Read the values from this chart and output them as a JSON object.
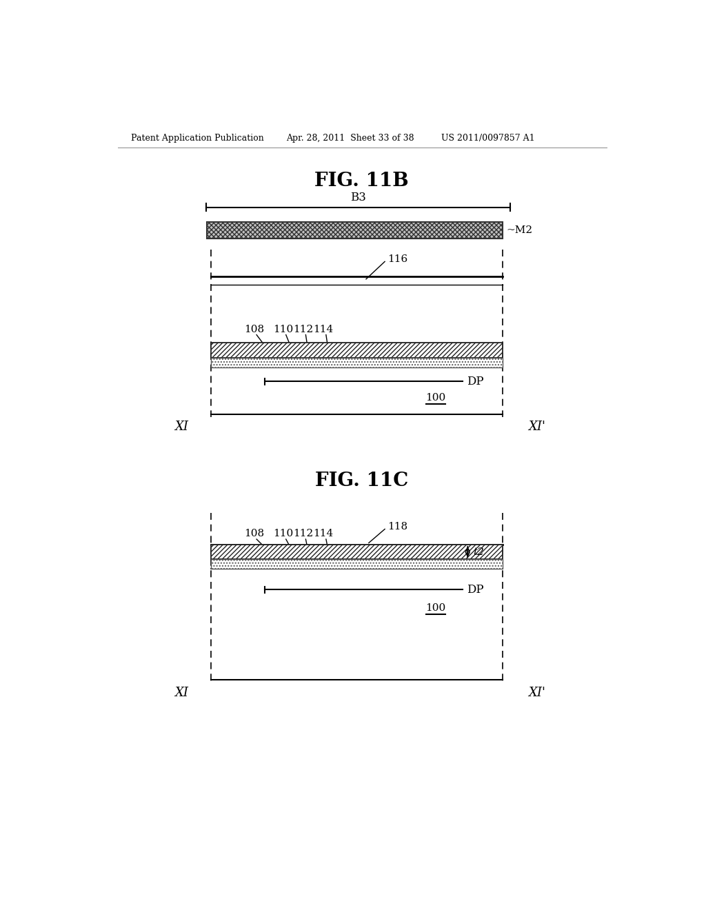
{
  "header_left": "Patent Application Publication",
  "header_center": "Apr. 28, 2011  Sheet 33 of 38",
  "header_right": "US 2011/0097857 A1",
  "fig11b_title": "FIG. 11B",
  "fig11c_title": "FIG. 11C",
  "bg_color": "#ffffff",
  "text_color": "#000000",
  "label_116": "116",
  "label_118": "118",
  "label_108": "108",
  "label_110": "110",
  "label_112": "112",
  "label_114": "114",
  "label_B3": "B3",
  "label_M2": "M2",
  "label_DP": "DP",
  "label_100": "100",
  "label_XI": "XI",
  "label_XIp": "XI'",
  "label_t2": "t2"
}
